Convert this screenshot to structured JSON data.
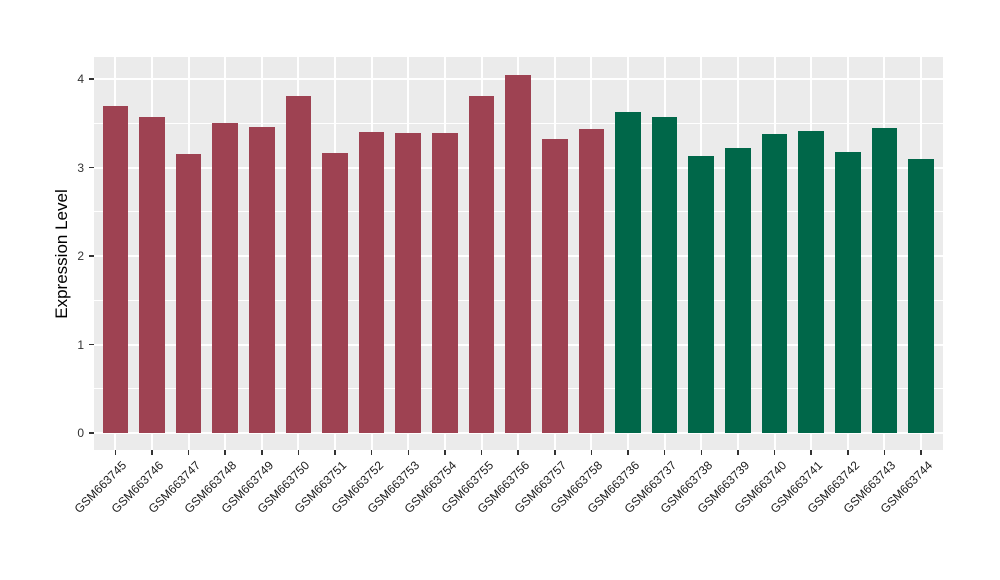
{
  "chart_data": {
    "type": "bar",
    "title": "",
    "xlabel": "",
    "ylabel": "Expression Level",
    "ylim": [
      -0.19,
      4.25
    ],
    "yticks": [
      0,
      1,
      2,
      3,
      4
    ],
    "grid": "horizontal major+minor white lines, vertical major white line at each category center",
    "legend_position": "none",
    "series": [
      {
        "name": "group-red",
        "color": "#9E4252",
        "categories": [
          "GSM663745",
          "GSM663746",
          "GSM663747",
          "GSM663748",
          "GSM663749",
          "GSM663750",
          "GSM663751",
          "GSM663752",
          "GSM663753",
          "GSM663754",
          "GSM663755",
          "GSM663756",
          "GSM663757",
          "GSM663758"
        ],
        "values": [
          3.7,
          3.57,
          3.15,
          3.5,
          3.46,
          3.81,
          3.16,
          3.4,
          3.39,
          3.39,
          3.81,
          4.04,
          3.32,
          3.44
        ]
      },
      {
        "name": "group-green",
        "color": "#006749",
        "categories": [
          "GSM663736",
          "GSM663737",
          "GSM663738",
          "GSM663739",
          "GSM663740",
          "GSM663741",
          "GSM663742",
          "GSM663743",
          "GSM663744"
        ],
        "values": [
          3.63,
          3.57,
          3.13,
          3.22,
          3.38,
          3.41,
          3.18,
          3.45,
          3.1
        ]
      }
    ],
    "colors": {
      "page_bg": "#FFFFFF",
      "panel_bg": "#EBEBEB",
      "grid": "#FFFFFF",
      "axis_text": "#333333",
      "axis_title": "#000000",
      "tick_mark": "#333333"
    }
  }
}
